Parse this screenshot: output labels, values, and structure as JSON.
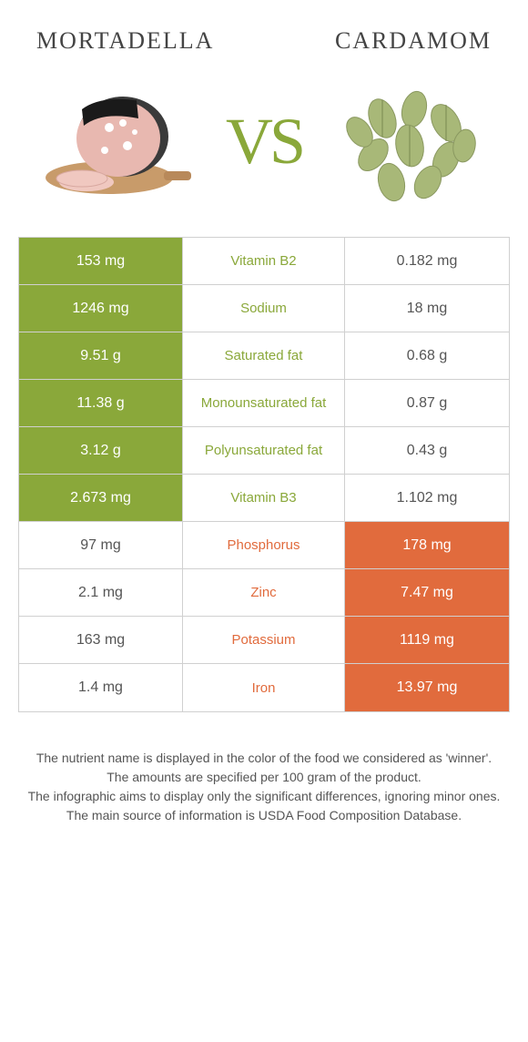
{
  "colors": {
    "left_food": "#8aa83a",
    "right_food": "#e16b3d",
    "vs_text": "#8aa83a",
    "border": "#d0d0d0",
    "loser_text": "#555555"
  },
  "foods": {
    "left": {
      "name": "Mortadella"
    },
    "right": {
      "name": "Cardamom"
    }
  },
  "vs_label": "VS",
  "rows": [
    {
      "nutrient": "Vitamin B2",
      "left": "153 mg",
      "right": "0.182 mg",
      "winner": "left"
    },
    {
      "nutrient": "Sodium",
      "left": "1246 mg",
      "right": "18 mg",
      "winner": "left"
    },
    {
      "nutrient": "Saturated fat",
      "left": "9.51 g",
      "right": "0.68 g",
      "winner": "left"
    },
    {
      "nutrient": "Monounsaturated fat",
      "left": "11.38 g",
      "right": "0.87 g",
      "winner": "left"
    },
    {
      "nutrient": "Polyunsaturated fat",
      "left": "3.12 g",
      "right": "0.43 g",
      "winner": "left"
    },
    {
      "nutrient": "Vitamin B3",
      "left": "2.673 mg",
      "right": "1.102 mg",
      "winner": "left"
    },
    {
      "nutrient": "Phosphorus",
      "left": "97 mg",
      "right": "178 mg",
      "winner": "right"
    },
    {
      "nutrient": "Zinc",
      "left": "2.1 mg",
      "right": "7.47 mg",
      "winner": "right"
    },
    {
      "nutrient": "Potassium",
      "left": "163 mg",
      "right": "1119 mg",
      "winner": "right"
    },
    {
      "nutrient": "Iron",
      "left": "1.4 mg",
      "right": "13.97 mg",
      "winner": "right"
    }
  ],
  "footer_lines": [
    "The nutrient name is displayed in the color of the food we considered as 'winner'.",
    "The amounts are specified per 100 gram of the product.",
    "The infographic aims to display only the significant differences, ignoring minor ones.",
    "The main source of information is USDA Food Composition Database."
  ]
}
